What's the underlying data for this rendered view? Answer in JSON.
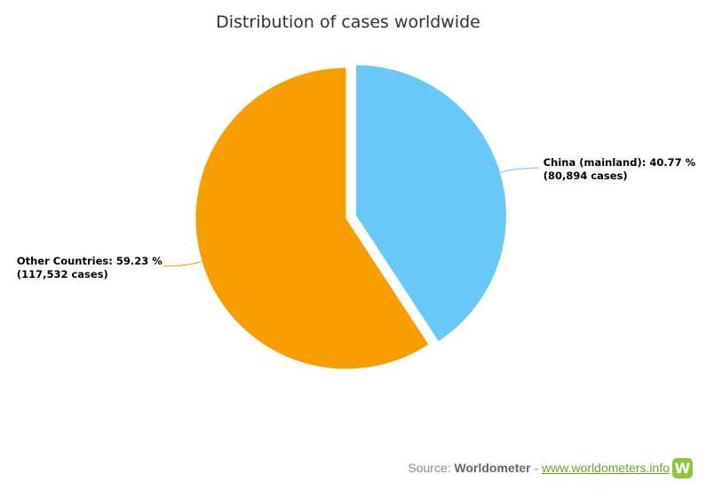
{
  "chart_data": {
    "type": "pie",
    "title": "Distribution of cases worldwide",
    "slices": [
      {
        "name": "China (mainland)",
        "percent": 40.77,
        "cases": 80894,
        "label_line1": "China (mainland): 40.77 %",
        "label_line2": "(80,894 cases)",
        "color": "#6ac8f8",
        "sliced": true
      },
      {
        "name": "Other Countries",
        "percent": 59.23,
        "cases": 117532,
        "label_line1": "Other Countries: 59.23 %",
        "label_line2": "(117,532 cases)",
        "color": "#f99e00",
        "sliced": false
      }
    ]
  },
  "credits": {
    "prefix": "Source: ",
    "brand": "Worldometer",
    "separator": " - ",
    "link": "www.worldometers.info",
    "logo_letter": "W",
    "brand_color": "#8cc63f"
  }
}
